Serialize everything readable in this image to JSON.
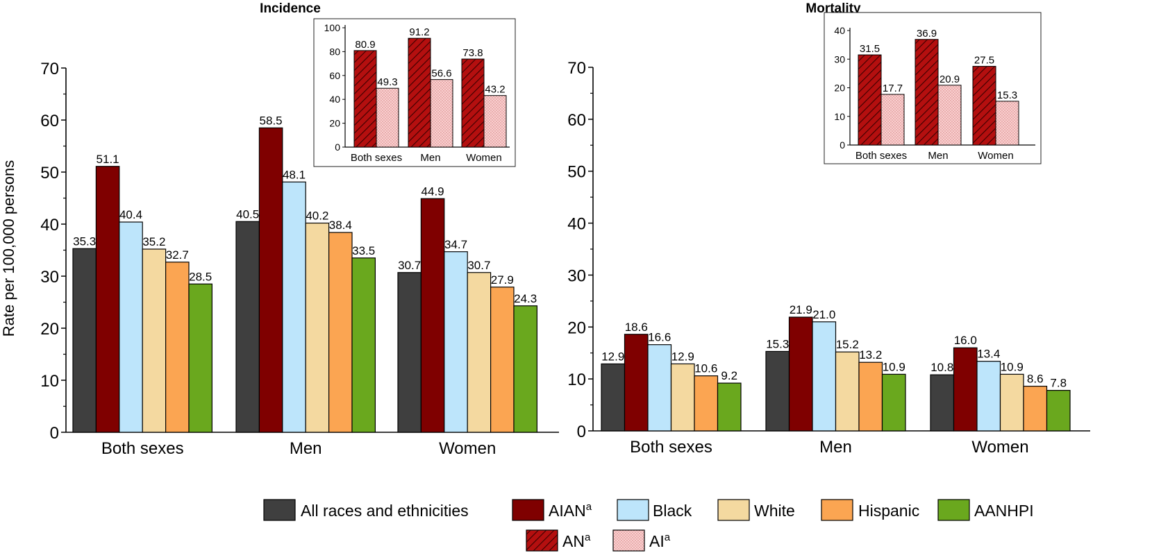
{
  "ylabel": "Rate per 100,000 persons",
  "legend": {
    "items": [
      {
        "label": "All races and ethnicities",
        "color": "#3f3f3f"
      },
      {
        "label": "AIAN",
        "sup": "a",
        "color": "#7f0000"
      },
      {
        "label": "Black",
        "color": "#bde5fb"
      },
      {
        "label": "White",
        "color": "#f4d9a0"
      },
      {
        "label": "Hispanic",
        "color": "#fba552"
      },
      {
        "label": "AANHPI",
        "color": "#6aa81e"
      }
    ],
    "items2": [
      {
        "label": "AN",
        "sup": "a",
        "pattern": "hatch",
        "color": "#b40f0f"
      },
      {
        "label": "AI",
        "sup": "a",
        "pattern": "dots",
        "color": "#f9d0d0"
      }
    ]
  },
  "chart_data": [
    {
      "type": "bar",
      "title": "Incidence",
      "categories": [
        "Both sexes",
        "Men",
        "Women"
      ],
      "ylim": [
        0,
        70
      ],
      "yticks": [
        0,
        10,
        20,
        30,
        40,
        50,
        60,
        70
      ],
      "series": [
        {
          "name": "All races and ethnicities",
          "values": [
            35.3,
            40.5,
            30.7
          ]
        },
        {
          "name": "AIAN",
          "values": [
            51.1,
            58.5,
            44.9
          ]
        },
        {
          "name": "Black",
          "values": [
            40.4,
            48.1,
            34.7
          ]
        },
        {
          "name": "White",
          "values": [
            35.2,
            40.2,
            30.7
          ]
        },
        {
          "name": "Hispanic",
          "values": [
            32.7,
            38.4,
            27.9
          ]
        },
        {
          "name": "AANHPI",
          "values": [
            28.5,
            33.5,
            24.3
          ]
        }
      ],
      "labels": [
        [
          "35.3",
          "40.5",
          "30.7"
        ],
        [
          "51.1",
          "58.5",
          "44.9"
        ],
        [
          "40.4",
          "48.1",
          "34.7"
        ],
        [
          "35.2",
          "40.2",
          "30.7"
        ],
        [
          "32.7",
          "38.4",
          "27.9"
        ],
        [
          "28.5",
          "33.5",
          "24.3"
        ]
      ],
      "inset": {
        "categories": [
          "Both sexes",
          "Men",
          "Women"
        ],
        "ylim": [
          0,
          100
        ],
        "yticks": [
          0,
          20,
          40,
          60,
          80,
          100
        ],
        "series": [
          {
            "name": "AN",
            "values": [
              80.9,
              91.2,
              73.8
            ]
          },
          {
            "name": "AI",
            "values": [
              49.3,
              56.6,
              43.2
            ]
          }
        ],
        "labels": [
          [
            "80.9",
            "91.2",
            "73.8"
          ],
          [
            "49.3",
            "56.6",
            "43.2"
          ]
        ]
      }
    },
    {
      "type": "bar",
      "title": "Mortality",
      "categories": [
        "Both sexes",
        "Men",
        "Women"
      ],
      "ylim": [
        0,
        70
      ],
      "yticks": [
        0,
        10,
        20,
        30,
        40,
        50,
        60,
        70
      ],
      "series": [
        {
          "name": "All races and ethnicities",
          "values": [
            12.9,
            15.3,
            10.8
          ]
        },
        {
          "name": "AIAN",
          "values": [
            18.6,
            21.9,
            16.0
          ]
        },
        {
          "name": "Black",
          "values": [
            16.6,
            21.0,
            13.4
          ]
        },
        {
          "name": "White",
          "values": [
            12.9,
            15.2,
            10.9
          ]
        },
        {
          "name": "Hispanic",
          "values": [
            10.6,
            13.2,
            8.6
          ]
        },
        {
          "name": "AANHPI",
          "values": [
            9.2,
            10.9,
            7.8
          ]
        }
      ],
      "labels": [
        [
          "12.9",
          "15.3",
          "10.8"
        ],
        [
          "18.6",
          "21.9",
          "16.0"
        ],
        [
          "16.6",
          "21.0",
          "13.4"
        ],
        [
          "12.9",
          "15.2",
          "10.9"
        ],
        [
          "10.6",
          "13.2",
          "8.6"
        ],
        [
          "9.2",
          "10.9",
          "7.8"
        ]
      ],
      "inset": {
        "categories": [
          "Both sexes",
          "Men",
          "Women"
        ],
        "ylim": [
          0,
          40
        ],
        "yticks": [
          0,
          10,
          20,
          30,
          40
        ],
        "series": [
          {
            "name": "AN",
            "values": [
              31.5,
              36.9,
              27.5
            ]
          },
          {
            "name": "AI",
            "values": [
              17.7,
              20.9,
              15.3
            ]
          }
        ],
        "labels": [
          [
            "31.5",
            "36.9",
            "27.5"
          ],
          [
            "17.7",
            "20.9",
            "15.3"
          ]
        ]
      }
    }
  ]
}
